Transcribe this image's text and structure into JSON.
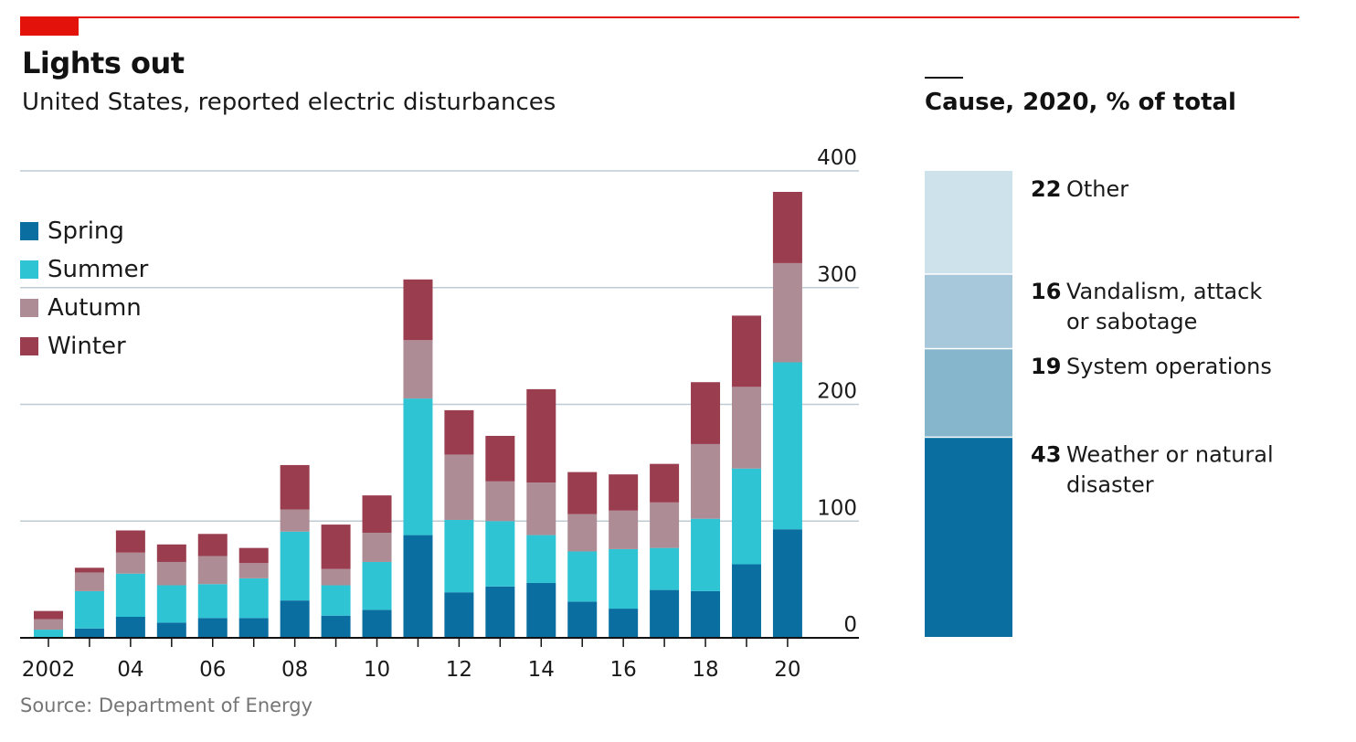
{
  "header": {
    "title": "Lights out",
    "subtitle": "United States, reported electric disturbances"
  },
  "footer": {
    "source": "Source: Department of Energy"
  },
  "colors": {
    "spring": "#0a6fa0",
    "summer": "#2ec4d4",
    "autumn": "#ad8c95",
    "winter": "#993d4f",
    "gridline": "#bfcbd3",
    "accent": "#e3120b"
  },
  "chart_data": [
    {
      "type": "bar",
      "stacked": true,
      "title": "United States, reported electric disturbances",
      "categories": [
        "2002",
        "2003",
        "2004",
        "2005",
        "2006",
        "2007",
        "2008",
        "2009",
        "2010",
        "2011",
        "2012",
        "2013",
        "2014",
        "2015",
        "2016",
        "2017",
        "2018",
        "2019",
        "2020"
      ],
      "x_tick_labels": [
        "2002",
        "",
        "04",
        "",
        "06",
        "",
        "08",
        "",
        "10",
        "",
        "12",
        "",
        "14",
        "",
        "16",
        "",
        "18",
        "",
        "20"
      ],
      "series": [
        {
          "name": "Spring",
          "values": [
            0,
            8,
            18,
            13,
            17,
            17,
            32,
            19,
            24,
            88,
            39,
            44,
            47,
            31,
            25,
            41,
            40,
            63,
            93
          ]
        },
        {
          "name": "Summer",
          "values": [
            7,
            32,
            37,
            32,
            29,
            34,
            59,
            26,
            41,
            117,
            62,
            56,
            41,
            43,
            51,
            36,
            62,
            82,
            143
          ]
        },
        {
          "name": "Autumn",
          "values": [
            9,
            16,
            18,
            20,
            24,
            13,
            19,
            14,
            25,
            50,
            56,
            34,
            45,
            32,
            33,
            39,
            64,
            70,
            85
          ]
        },
        {
          "name": "Winter",
          "values": [
            7,
            4,
            19,
            15,
            19,
            13,
            38,
            38,
            32,
            52,
            38,
            39,
            80,
            36,
            31,
            33,
            53,
            61,
            61
          ]
        }
      ],
      "ylim": [
        0,
        400
      ],
      "yticks": [
        "0",
        "100",
        "200",
        "300",
        "400"
      ],
      "grid": true,
      "legend": "top-left"
    },
    {
      "type": "bar",
      "stacked": true,
      "title": "Cause, 2020, % of total",
      "categories": [
        "Weather or natural disaster",
        "System operations",
        "Vandalism, attack or sabotage",
        "Other"
      ],
      "values": [
        43,
        19,
        16,
        22
      ],
      "labels": [
        {
          "value": "43",
          "lines": [
            "Weather or natural",
            "disaster"
          ],
          "color": "#0a6fa0"
        },
        {
          "value": "19",
          "lines": [
            "System operations"
          ],
          "color": "#86b6cc"
        },
        {
          "value": "16",
          "lines": [
            "Vandalism, attack",
            "or sabotage"
          ],
          "color": "#a6c8da"
        },
        {
          "value": "22",
          "lines": [
            "Other"
          ],
          "color": "#cde2ea"
        }
      ]
    }
  ]
}
